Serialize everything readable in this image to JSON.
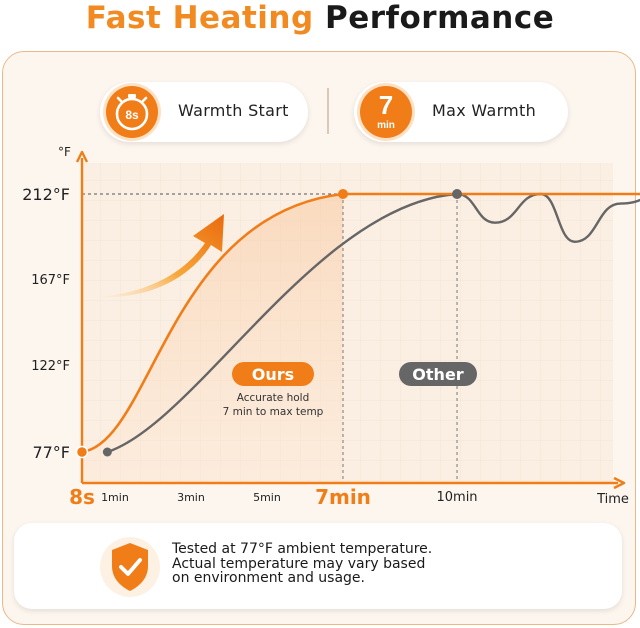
{
  "header": {
    "title_part1": "Fast Heating",
    "title_part2": "Performance"
  },
  "stats": [
    {
      "badge_value": "8s",
      "label": "Warmth Start",
      "icon": "stopwatch-icon"
    },
    {
      "badge_value": "7",
      "badge_unit": "min",
      "label": "Max Warmth"
    }
  ],
  "chart_data": {
    "type": "line",
    "ylabel": "°F",
    "xlabel": "Time",
    "ylim": [
      77,
      212
    ],
    "yticks": [
      "212°F",
      "167°F",
      "122°F",
      "77°F"
    ],
    "ytick_values": [
      212,
      167,
      122,
      77
    ],
    "xticks": [
      {
        "label": "8s",
        "minutes": 0.133,
        "highlight": true
      },
      {
        "label": "1min",
        "minutes": 1,
        "highlight": false
      },
      {
        "label": "3min",
        "minutes": 3,
        "highlight": false
      },
      {
        "label": "5min",
        "minutes": 5,
        "highlight": false
      },
      {
        "label": "7min",
        "minutes": 7,
        "highlight": true
      },
      {
        "label": "10min",
        "minutes": 10,
        "highlight": false
      }
    ],
    "series": [
      {
        "name": "Ours",
        "color": "#f07d18",
        "points": [
          [
            0.133,
            77
          ],
          [
            7,
            212
          ],
          [
            15.5,
            212
          ]
        ]
      },
      {
        "name": "Other",
        "color": "#666666",
        "points": [
          [
            0.8,
            77
          ],
          [
            10,
            212
          ],
          [
            11.0,
            197
          ],
          [
            12.2,
            212
          ],
          [
            13.1,
            187
          ],
          [
            14.3,
            207
          ],
          [
            15.5,
            212
          ]
        ]
      }
    ],
    "grid": true,
    "annotations": [
      {
        "text": "Accurate hold",
        "series": "Ours"
      },
      {
        "text": "7 min to max temp",
        "series": "Ours"
      }
    ]
  },
  "note": {
    "lines": [
      "Tested at 77°F ambient temperature.",
      "Actual temperature may vary based",
      "on environment and usage."
    ],
    "icon": "shield-check-icon"
  },
  "colors": {
    "accent": "#f07d18",
    "other": "#666666",
    "panel": "#fdf6ef"
  }
}
